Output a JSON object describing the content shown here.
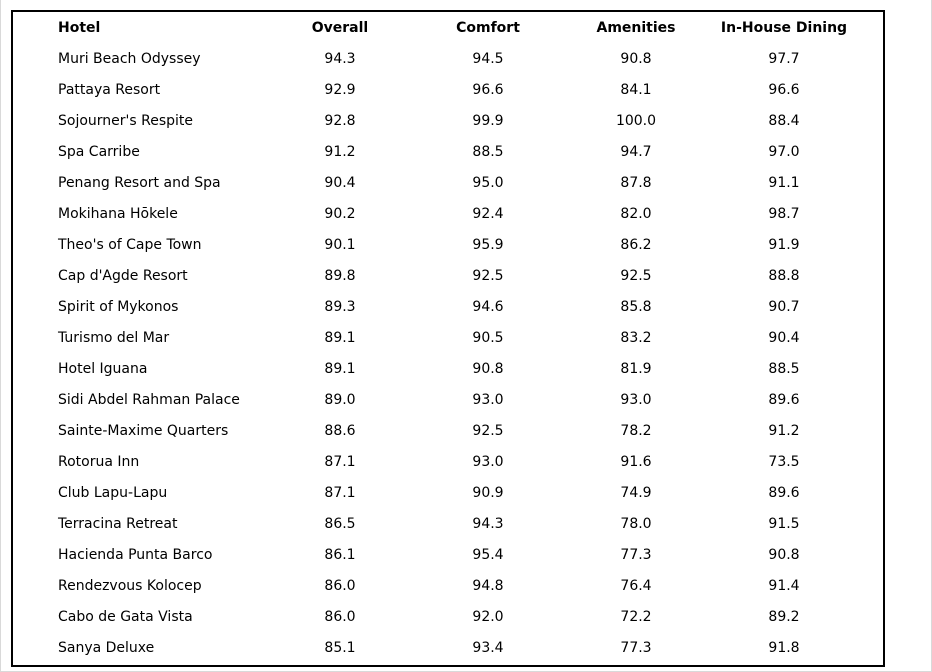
{
  "page": {
    "background": "#ffffff",
    "frame_border_color": "#000000",
    "text_color": "#000000",
    "page_edge_color": "#d9d9d9"
  },
  "chart_data": {
    "type": "table",
    "title": "",
    "columns": [
      "Hotel",
      "Overall",
      "Comfort",
      "Amenities",
      "In-House Dining"
    ],
    "rows": [
      [
        "Muri Beach Odyssey",
        "94.3",
        "94.5",
        "90.8",
        "97.7"
      ],
      [
        "Pattaya Resort",
        "92.9",
        "96.6",
        "84.1",
        "96.6"
      ],
      [
        "Sojourner's Respite",
        "92.8",
        "99.9",
        "100.0",
        "88.4"
      ],
      [
        "Spa Carribe",
        "91.2",
        "88.5",
        "94.7",
        "97.0"
      ],
      [
        "Penang Resort and Spa",
        "90.4",
        "95.0",
        "87.8",
        "91.1"
      ],
      [
        "Mokihana Hōkele",
        "90.2",
        "92.4",
        "82.0",
        "98.7"
      ],
      [
        "Theo's of Cape Town",
        "90.1",
        "95.9",
        "86.2",
        "91.9"
      ],
      [
        "Cap d'Agde Resort",
        "89.8",
        "92.5",
        "92.5",
        "88.8"
      ],
      [
        "Spirit of Mykonos",
        "89.3",
        "94.6",
        "85.8",
        "90.7"
      ],
      [
        "Turismo del Mar",
        "89.1",
        "90.5",
        "83.2",
        "90.4"
      ],
      [
        "Hotel Iguana",
        "89.1",
        "90.8",
        "81.9",
        "88.5"
      ],
      [
        "Sidi Abdel Rahman Palace",
        "89.0",
        "93.0",
        "93.0",
        "89.6"
      ],
      [
        "Sainte-Maxime Quarters",
        "88.6",
        "92.5",
        "78.2",
        "91.2"
      ],
      [
        "Rotorua Inn",
        "87.1",
        "93.0",
        "91.6",
        "73.5"
      ],
      [
        "Club Lapu-Lapu",
        "87.1",
        "90.9",
        "74.9",
        "89.6"
      ],
      [
        "Terracina Retreat",
        "86.5",
        "94.3",
        "78.0",
        "91.5"
      ],
      [
        "Hacienda Punta Barco",
        "86.1",
        "95.4",
        "77.3",
        "90.8"
      ],
      [
        "Rendezvous Kolocep",
        "86.0",
        "94.8",
        "76.4",
        "91.4"
      ],
      [
        "Cabo de Gata Vista",
        "86.0",
        "92.0",
        "72.2",
        "89.2"
      ],
      [
        "Sanya Deluxe",
        "85.1",
        "93.4",
        "77.3",
        "91.8"
      ]
    ]
  }
}
